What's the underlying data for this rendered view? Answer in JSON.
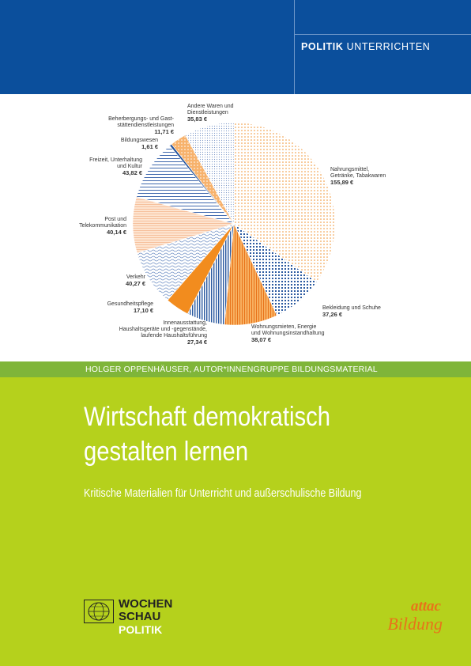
{
  "header": {
    "series_bold": "POLITIK",
    "series_rest": "UNTERRICHTEN"
  },
  "colors": {
    "blue": "#0b4f9c",
    "green_band": "#7fb539",
    "lime": "#b5d11c",
    "orange": "#f28c1e",
    "chart_blue": "#2c5aa0"
  },
  "chart_data": {
    "type": "pie",
    "title": "",
    "unit": "€",
    "slices": [
      {
        "label": "Nahrungsmittel, Getränke, Tabakwaren",
        "value": 155.89,
        "display": "155,89 €",
        "pattern": "orange-dots"
      },
      {
        "label": "Bekleidung und Schuhe",
        "value": 37.26,
        "display": "37,26 €",
        "pattern": "blue-grid"
      },
      {
        "label": "Wohnungsmieten, Energie und Wohnungsinstandhaltung",
        "value": 38.07,
        "display": "38,07 €",
        "pattern": "orange-hatch"
      },
      {
        "label": "Innenausstattung, Haushaltsgeräte und -gegenstände, laufende Haushaltsführung",
        "value": 27.34,
        "display": "27,34 €",
        "pattern": "blue-vlines"
      },
      {
        "label": "Gesundheitspflege",
        "value": 17.1,
        "display": "17,10 €",
        "pattern": "orange-solid"
      },
      {
        "label": "Verkehr",
        "value": 40.27,
        "display": "40,27 €",
        "pattern": "blue-waves"
      },
      {
        "label": "Post und Telekommunikation",
        "value": 40.14,
        "display": "40,14 €",
        "pattern": "peach-lines"
      },
      {
        "label": "Freizeit, Unterhaltung und Kultur",
        "value": 43.82,
        "display": "43,82 €",
        "pattern": "blue-hlines"
      },
      {
        "label": "Bildungswesen",
        "value": 1.61,
        "display": "1,61 €",
        "pattern": "blue-solid"
      },
      {
        "label": "Beherbergungs- und Gaststättendienstleistungen",
        "value": 11.71,
        "display": "11,71 €",
        "pattern": "orange-light"
      },
      {
        "label": "Andere Waren und Dienstleistungen",
        "value": 35.83,
        "display": "35,83 €",
        "pattern": "blue-dots"
      }
    ]
  },
  "labels": {
    "nahrung": {
      "l1": "Nahrungsmittel,",
      "l2": "Getränke, Tabakwaren",
      "v": "155,89 €"
    },
    "bekleidung": {
      "l1": "Bekleidung und Schuhe",
      "v": "37,26 €"
    },
    "wohnung": {
      "l1": "Wohnungsmieten, Energie",
      "l2": "und Wohnungsinstandhaltung",
      "v": "38,07 €"
    },
    "innen": {
      "l1": "Innenausstattung,",
      "l2": "Haushaltsgeräte und -gegenstände,",
      "l3": "laufende Haushaltsführung",
      "v": "27,34 €"
    },
    "gesundheit": {
      "l1": "Gesundheitspflege",
      "v": "17,10 €"
    },
    "verkehr": {
      "l1": "Verkehr",
      "v": "40,27 €"
    },
    "post": {
      "l1": "Post und",
      "l2": "Telekommunikation",
      "v": "40,14 €"
    },
    "freizeit": {
      "l1": "Freizeit, Unterhaltung",
      "l2": "und Kultur",
      "v": "43,82 €"
    },
    "bildung": {
      "l1": "Bildungswesen",
      "v": "1,61 €"
    },
    "beherbergung": {
      "l1": "Beherbergungs- und Gast-",
      "l2": "stättendienstleistungen",
      "v": "11,71 €"
    },
    "andere": {
      "l1": "Andere Waren und",
      "l2": "Dienstleistungen",
      "v": "35,83 €"
    }
  },
  "authors": "HOLGER OPPENHÄUSER, AUTOR*INNENGRUPPE BILDUNGSMATERIAL",
  "title_line1": "Wirtschaft demokratisch",
  "title_line2": "gestalten lernen",
  "subtitle": "Kritische Materialien für Unterricht und außerschulische Bildung",
  "publisher": {
    "line1": "WOCHEN",
    "line2": "SCHAU",
    "line3": "POLITIK"
  },
  "partner": {
    "line1": "attac",
    "line2": "Bildung"
  }
}
